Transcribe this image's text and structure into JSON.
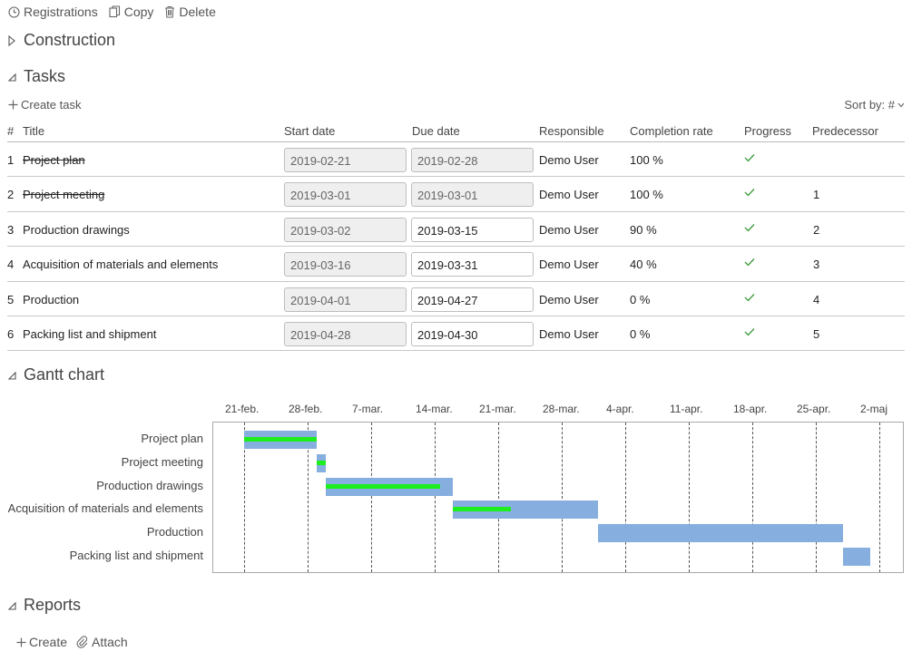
{
  "toolbar": {
    "registrations_label": "Registrations",
    "copy_label": "Copy",
    "delete_label": "Delete",
    "registrations_icon": "clock-icon",
    "copy_icon": "copy-icon",
    "delete_icon": "trash-icon"
  },
  "sections": {
    "construction": "Construction",
    "tasks": "Tasks",
    "gantt": "Gantt chart",
    "reports": "Reports"
  },
  "tasks": {
    "create_label": "Create task",
    "sort_label": "Sort by: #",
    "headers": {
      "num": "#",
      "title": "Title",
      "start": "Start date",
      "due": "Due date",
      "responsible": "Responsible",
      "completion": "Completion rate",
      "progress": "Progress",
      "predecessor": "Predecessor"
    },
    "rows": [
      {
        "num": "1",
        "title": "Project plan",
        "start": "2019-02-21",
        "due": "2019-02-28",
        "responsible": "Demo User",
        "completion": "100 %",
        "predecessor": "",
        "done": true
      },
      {
        "num": "2",
        "title": "Project meeting",
        "start": "2019-03-01",
        "due": "2019-03-01",
        "responsible": "Demo User",
        "completion": "100 %",
        "predecessor": "1",
        "done": true
      },
      {
        "num": "3",
        "title": "Production drawings",
        "start": "2019-03-02",
        "due": "2019-03-15",
        "responsible": "Demo User",
        "completion": "90 %",
        "predecessor": "2",
        "done": false
      },
      {
        "num": "4",
        "title": "Acquisition of materials and elements",
        "start": "2019-03-16",
        "due": "2019-03-31",
        "responsible": "Demo User",
        "completion": "40 %",
        "predecessor": "3",
        "done": false
      },
      {
        "num": "5",
        "title": "Production",
        "start": "2019-04-01",
        "due": "2019-04-27",
        "responsible": "Demo User",
        "completion": "0 %",
        "predecessor": "4",
        "done": false
      },
      {
        "num": "6",
        "title": "Packing list and shipment",
        "start": "2019-04-28",
        "due": "2019-04-30",
        "responsible": "Demo User",
        "completion": "0 %",
        "predecessor": "5",
        "done": false
      }
    ]
  },
  "gantt": {
    "ticks": [
      "21-feb.",
      "28-feb.",
      "7-mar.",
      "14-mar.",
      "21-mar.",
      "28-mar.",
      "4-apr.",
      "11-apr.",
      "18-apr.",
      "25-apr.",
      "2-maj"
    ],
    "colors": {
      "bar": "#86aede",
      "progress": "#1dee1d"
    }
  },
  "reports": {
    "create_label": "Create",
    "attach_label": "Attach"
  }
}
